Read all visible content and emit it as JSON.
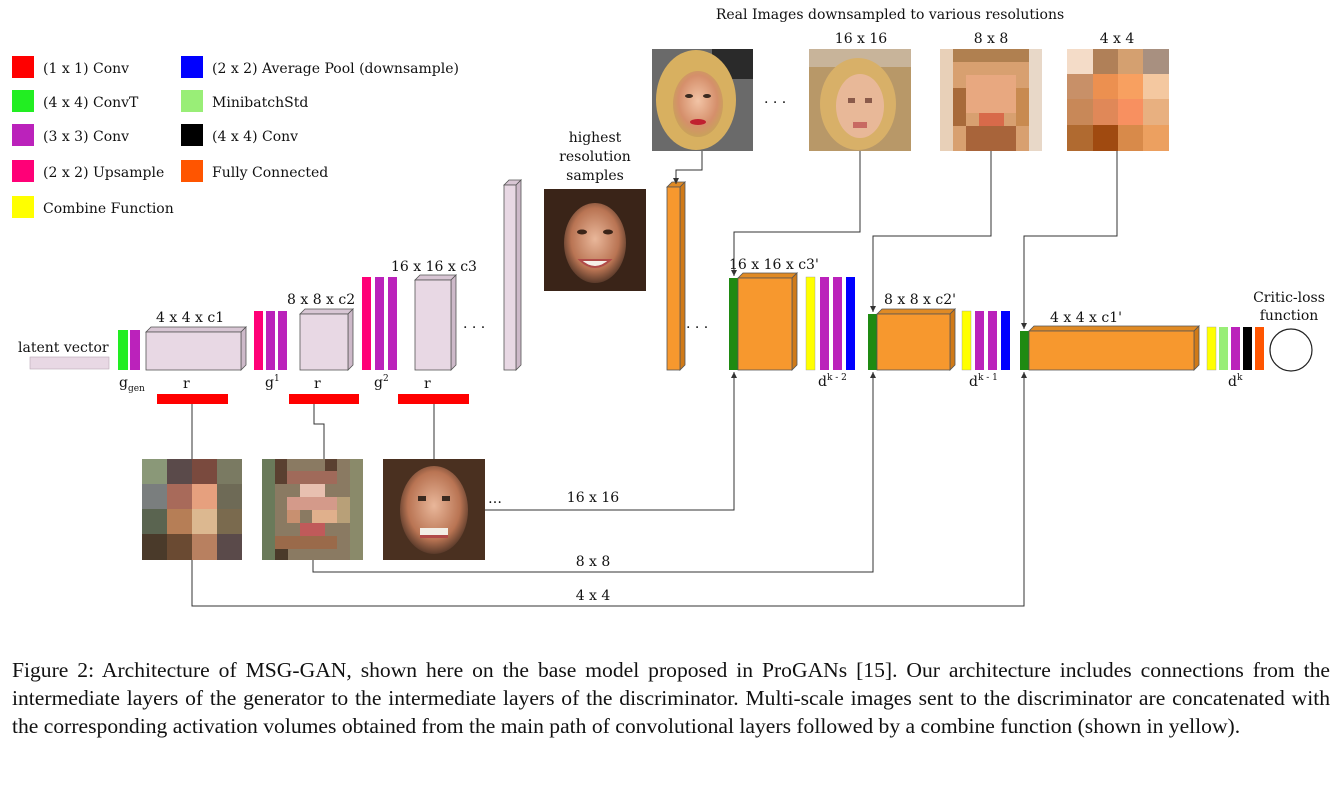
{
  "legend": [
    {
      "label": "(1 x 1) Conv",
      "color": "#ff0000"
    },
    {
      "label": "(4 x 4) ConvT",
      "color": "#22ee22"
    },
    {
      "label": "(3 x 3) Conv",
      "color": "#bb22bb"
    },
    {
      "label": "(2 x 2) Upsample",
      "color": "#ff0077"
    },
    {
      "label": "Combine Function",
      "color": "#ffff00"
    },
    {
      "label": "(2 x 2) Average Pool (downsample)",
      "color": "#0000ff"
    },
    {
      "label": "MinibatchStd",
      "color": "#99ee77"
    },
    {
      "label": "(4 x 4) Conv",
      "color": "#000000"
    },
    {
      "label": "Fully Connected",
      "color": "#ff5500"
    }
  ],
  "colors": {
    "generator_volume": "#e8d8e4",
    "discriminator_volume": "#f7982e",
    "combine_green": "#1f8a12",
    "line": "#333333"
  },
  "generator": {
    "latent_label": "latent vector",
    "g_gen_main": "g",
    "g_gen_sub": "gen",
    "g1_main": "g",
    "g1_sup": "1",
    "g2_main": "g",
    "g2_sup": "2",
    "vol1_label": "4 x 4 x c1",
    "vol2_label": "8 x 8 x c2",
    "vol3_label": "16 x 16 x c3",
    "r_label": "r",
    "ellipsis": ". . ."
  },
  "samples": {
    "highest_res_line1": "highest",
    "highest_res_line2": "resolution",
    "highest_res_line3": "samples",
    "ellipsis": "…"
  },
  "real": {
    "title": "Real Images downsampled to various resolutions",
    "res1": "16 x 16",
    "res2": "8 x 8",
    "res3": "4 x 4",
    "ellipsis": ". . ."
  },
  "discriminator": {
    "vol1_label": "16 x 16 x c3'",
    "vol2_label": "8 x 8 x c2'",
    "vol3_label": "4 x 4 x c1'",
    "d1_main": "d",
    "d1_sup": "k - 2",
    "d2_main": "d",
    "d2_sup": "k - 1",
    "d3_main": "d",
    "d3_sup": "k",
    "ellipsis": ". . .",
    "critic_line1": "Critic-loss",
    "critic_line2": "function"
  },
  "connections": {
    "c16": "16 x 16",
    "c8": "8 x 8",
    "c4": "4 x 4"
  },
  "caption": "Figure 2: Architecture of MSG-GAN, shown here on the base model proposed in ProGANs [15]. Our architecture includes connections from the intermediate layers of the generator to the intermediate layers of the discriminator. Multi-scale images sent to the discriminator are concatenated with the corresponding activation volumes obtained from the main path of convolutional layers followed by a combine function (shown in yellow)."
}
